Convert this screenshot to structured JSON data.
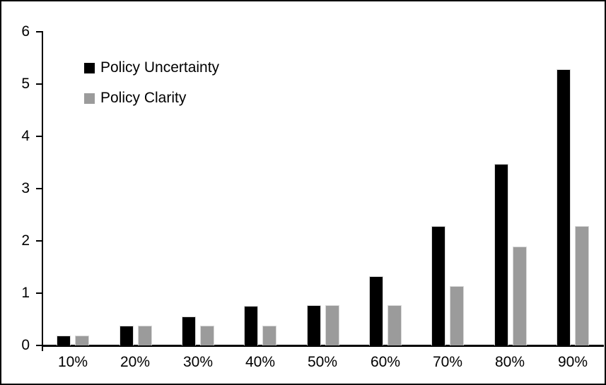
{
  "chart_data": {
    "type": "bar",
    "title": "",
    "xlabel": "",
    "ylabel": "",
    "categories": [
      "10%",
      "20%",
      "30%",
      "40%",
      "50%",
      "60%",
      "70%",
      "80%",
      "90%"
    ],
    "series": [
      {
        "name": "Policy Uncertainty",
        "color": "#000000",
        "values": [
          0.19,
          0.38,
          0.56,
          0.75,
          0.77,
          1.32,
          2.29,
          3.47,
          5.28
        ]
      },
      {
        "name": "Policy Clarity",
        "color": "#9b9b9b",
        "values": [
          0.19,
          0.38,
          0.38,
          0.38,
          0.77,
          0.77,
          1.13,
          1.89,
          2.28
        ]
      }
    ],
    "ylim": [
      0,
      6
    ],
    "yticks": [
      0,
      1,
      2,
      3,
      4,
      5,
      6
    ],
    "grid": false,
    "legend_position": "top-left"
  },
  "colors": {
    "background": "#ffffff",
    "frame_border": "#000000",
    "axis": "#000000",
    "bar_border": "#d9d9d9",
    "text": "#000000"
  }
}
